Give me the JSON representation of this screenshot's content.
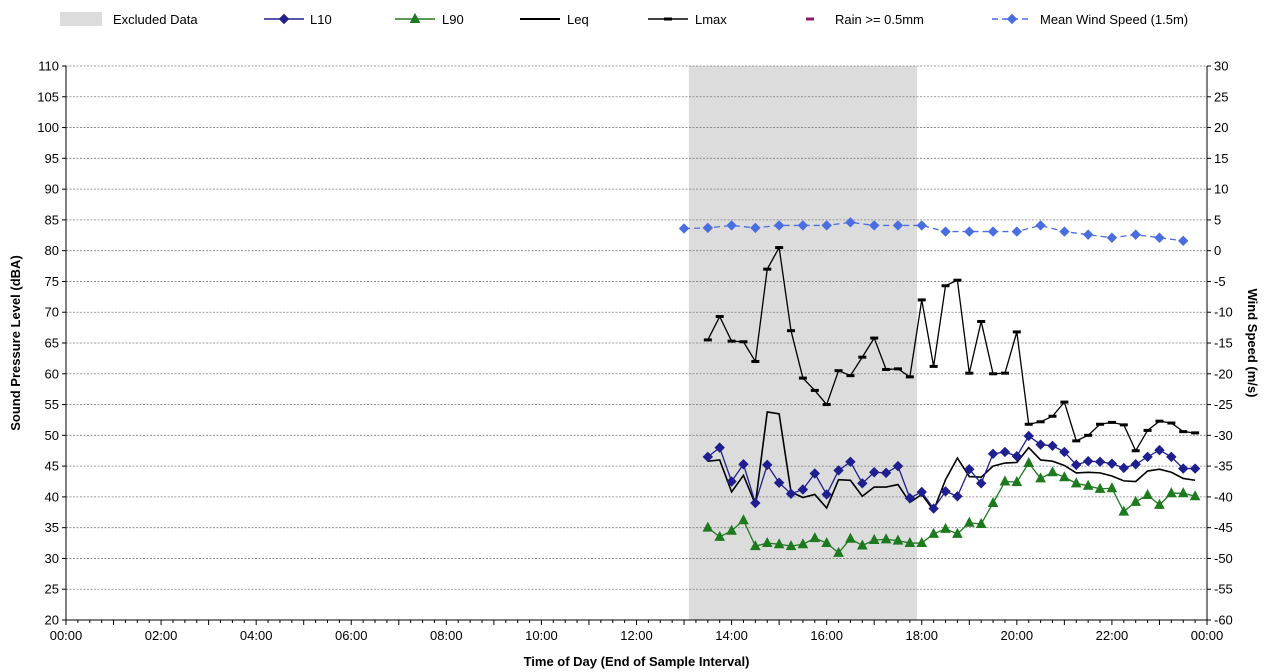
{
  "chart_data": {
    "type": "line",
    "title": "",
    "xlabel": "Time of Day (End of Sample Interval)",
    "ylabel": "Sound Pressure Level (dBA)",
    "y2label": "Wind Speed (m/s)",
    "x_unit": "hours",
    "xlim": [
      0,
      24
    ],
    "ylim": [
      20,
      110
    ],
    "y2lim": [
      -60,
      30
    ],
    "x_tick_labels": [
      "00:00",
      "02:00",
      "04:00",
      "06:00",
      "08:00",
      "10:00",
      "12:00",
      "14:00",
      "16:00",
      "18:00",
      "20:00",
      "22:00",
      "00:00"
    ],
    "y_tick_labels": [
      "20",
      "25",
      "30",
      "35",
      "40",
      "45",
      "50",
      "55",
      "60",
      "65",
      "70",
      "75",
      "80",
      "85",
      "90",
      "95",
      "100",
      "105",
      "110"
    ],
    "y2_tick_labels": [
      "-60",
      "-55",
      "-50",
      "-45",
      "-40",
      "-35",
      "-30",
      "-25",
      "-20",
      "-15",
      "-10",
      "-5",
      "0",
      "5",
      "10",
      "15",
      "20",
      "25",
      "30"
    ],
    "grid": true,
    "legend_position": "top",
    "excluded_region": {
      "label": "Excluded Data",
      "x_start": 13.1,
      "x_end": 17.9,
      "color": "#dcdcdc"
    },
    "legend": [
      {
        "name": "Excluded Data",
        "kind": "area",
        "color": "#dcdcdc"
      },
      {
        "name": "L10",
        "kind": "line-marker",
        "color": "#1f1f8f",
        "marker": "diamond"
      },
      {
        "name": "L90",
        "kind": "line-marker",
        "color": "#1e7a1e",
        "marker": "triangle"
      },
      {
        "name": "Leq",
        "kind": "line",
        "color": "#000000"
      },
      {
        "name": "Lmax",
        "kind": "line-marker",
        "color": "#000000",
        "marker": "dash"
      },
      {
        "name": "Rain >= 0.5mm",
        "kind": "marker",
        "color": "#8b1a6b",
        "marker": "dash"
      },
      {
        "name": "Mean Wind Speed (1.5m)",
        "kind": "dashed-line-marker",
        "color": "#4a6ee0",
        "marker": "diamond"
      }
    ],
    "series": [
      {
        "name": "L10",
        "axis": "left",
        "color": "#1f1f8f",
        "marker": "diamond",
        "x": [
          13.5,
          13.75,
          14.0,
          14.25,
          14.5,
          14.75,
          15.0,
          15.25,
          15.5,
          15.75,
          16.0,
          16.25,
          16.5,
          16.75,
          17.0,
          17.25,
          17.5,
          17.75,
          18.0,
          18.25,
          18.5,
          18.75,
          19.0,
          19.25,
          19.5,
          19.75,
          20.0,
          20.25,
          20.5,
          20.75,
          21.0,
          21.25,
          21.5,
          21.75,
          22.0,
          22.25,
          22.5,
          22.75,
          23.0,
          23.25,
          23.5,
          23.75
        ],
        "values": [
          46.5,
          48,
          42.5,
          45.3,
          39,
          45.2,
          42.3,
          40.5,
          41.2,
          43.8,
          40.4,
          44.3,
          45.7,
          42.2,
          44.0,
          43.9,
          45.0,
          39.8,
          40.8,
          38.1,
          40.9,
          40.1,
          44.5,
          42.2,
          47.0,
          47.3,
          46.6,
          49.9,
          48.5,
          48.3,
          47.3,
          45.2,
          45.8,
          45.7,
          45.4,
          44.7,
          45.3,
          46.5,
          47.6,
          46.5,
          44.6,
          44.6
        ]
      },
      {
        "name": "L90",
        "axis": "left",
        "color": "#1e7a1e",
        "marker": "triangle",
        "x": [
          13.5,
          13.75,
          14.0,
          14.25,
          14.5,
          14.75,
          15.0,
          15.25,
          15.5,
          15.75,
          16.0,
          16.25,
          16.5,
          16.75,
          17.0,
          17.25,
          17.5,
          17.75,
          18.0,
          18.25,
          18.5,
          18.75,
          19.0,
          19.25,
          19.5,
          19.75,
          20.0,
          20.25,
          20.5,
          20.75,
          21.0,
          21.25,
          21.5,
          21.75,
          22.0,
          22.25,
          22.5,
          22.75,
          23.0,
          23.25,
          23.5,
          23.75
        ],
        "values": [
          35.0,
          33.5,
          34.5,
          36.2,
          32.0,
          32.5,
          32.3,
          32.0,
          32.3,
          33.3,
          32.5,
          30.9,
          33.2,
          32.1,
          33.0,
          33.1,
          32.9,
          32.5,
          32.5,
          34.0,
          34.8,
          34.0,
          35.8,
          35.6,
          39.0,
          42.5,
          42.4,
          45.5,
          43.0,
          44.0,
          43.2,
          42.2,
          41.8,
          41.3,
          41.4,
          37.6,
          39.2,
          40.3,
          38.7,
          40.6,
          40.6,
          40.1
        ]
      },
      {
        "name": "Leq",
        "axis": "left",
        "color": "#000000",
        "marker": "none",
        "x": [
          13.5,
          13.75,
          14.0,
          14.25,
          14.5,
          14.75,
          15.0,
          15.25,
          15.5,
          15.75,
          16.0,
          16.25,
          16.5,
          16.75,
          17.0,
          17.25,
          17.5,
          17.75,
          18.0,
          18.25,
          18.5,
          18.75,
          19.0,
          19.25,
          19.5,
          19.75,
          20.0,
          20.25,
          20.5,
          20.75,
          21.0,
          21.25,
          21.5,
          21.75,
          22.0,
          22.25,
          22.5,
          22.75,
          23.0,
          23.25,
          23.5,
          23.75
        ],
        "values": [
          45.8,
          46.0,
          40.8,
          43.5,
          38.8,
          53.8,
          53.5,
          40.8,
          39.9,
          40.4,
          38.2,
          42.8,
          42.7,
          40.1,
          41.6,
          41.6,
          42.0,
          39.1,
          40.4,
          37.8,
          42.8,
          46.3,
          43.3,
          43.2,
          45.0,
          45.5,
          45.6,
          48.0,
          46.0,
          45.8,
          45.1,
          43.9,
          44.0,
          43.9,
          43.4,
          42.6,
          42.5,
          44.2,
          44.5,
          44.0,
          43.0,
          42.7
        ]
      },
      {
        "name": "Lmax",
        "axis": "left",
        "color": "#000000",
        "marker": "dash",
        "x": [
          13.5,
          13.75,
          14.0,
          14.25,
          14.5,
          14.75,
          15.0,
          15.25,
          15.5,
          15.75,
          16.0,
          16.25,
          16.5,
          16.75,
          17.0,
          17.25,
          17.5,
          17.75,
          18.0,
          18.25,
          18.5,
          18.75,
          19.0,
          19.25,
          19.5,
          19.75,
          20.0,
          20.25,
          20.5,
          20.75,
          21.0,
          21.25,
          21.5,
          21.75,
          22.0,
          22.25,
          22.5,
          22.75,
          23.0,
          23.25,
          23.5,
          23.75
        ],
        "values": [
          65.5,
          69.3,
          65.3,
          65.2,
          62.0,
          77.0,
          80.5,
          67.0,
          59.3,
          57.3,
          55.0,
          60.5,
          59.7,
          62.7,
          65.8,
          60.7,
          60.8,
          59.5,
          72.0,
          61.2,
          74.3,
          75.2,
          60.1,
          68.5,
          60.0,
          60.1,
          66.8,
          51.8,
          52.2,
          53.1,
          55.4,
          49.1,
          50.0,
          51.8,
          52.1,
          51.7,
          47.5,
          50.8,
          52.3,
          52.0,
          50.6,
          50.4
        ]
      },
      {
        "name": "Mean Wind Speed (1.5m)",
        "axis": "right",
        "color": "#4a6ee0",
        "marker": "diamond",
        "dashed": true,
        "x": [
          13.0,
          13.5,
          14.0,
          14.5,
          15.0,
          15.5,
          16.0,
          16.5,
          17.0,
          17.5,
          18.0,
          18.5,
          19.0,
          19.5,
          20.0,
          20.5,
          21.0,
          21.5,
          22.0,
          22.5,
          23.0,
          23.5
        ],
        "values": [
          3.6,
          3.7,
          4.1,
          3.7,
          4.1,
          4.1,
          4.1,
          4.6,
          4.1,
          4.1,
          4.1,
          3.1,
          3.1,
          3.1,
          3.1,
          4.1,
          3.1,
          2.6,
          2.1,
          2.6,
          2.1,
          1.6
        ]
      }
    ]
  }
}
